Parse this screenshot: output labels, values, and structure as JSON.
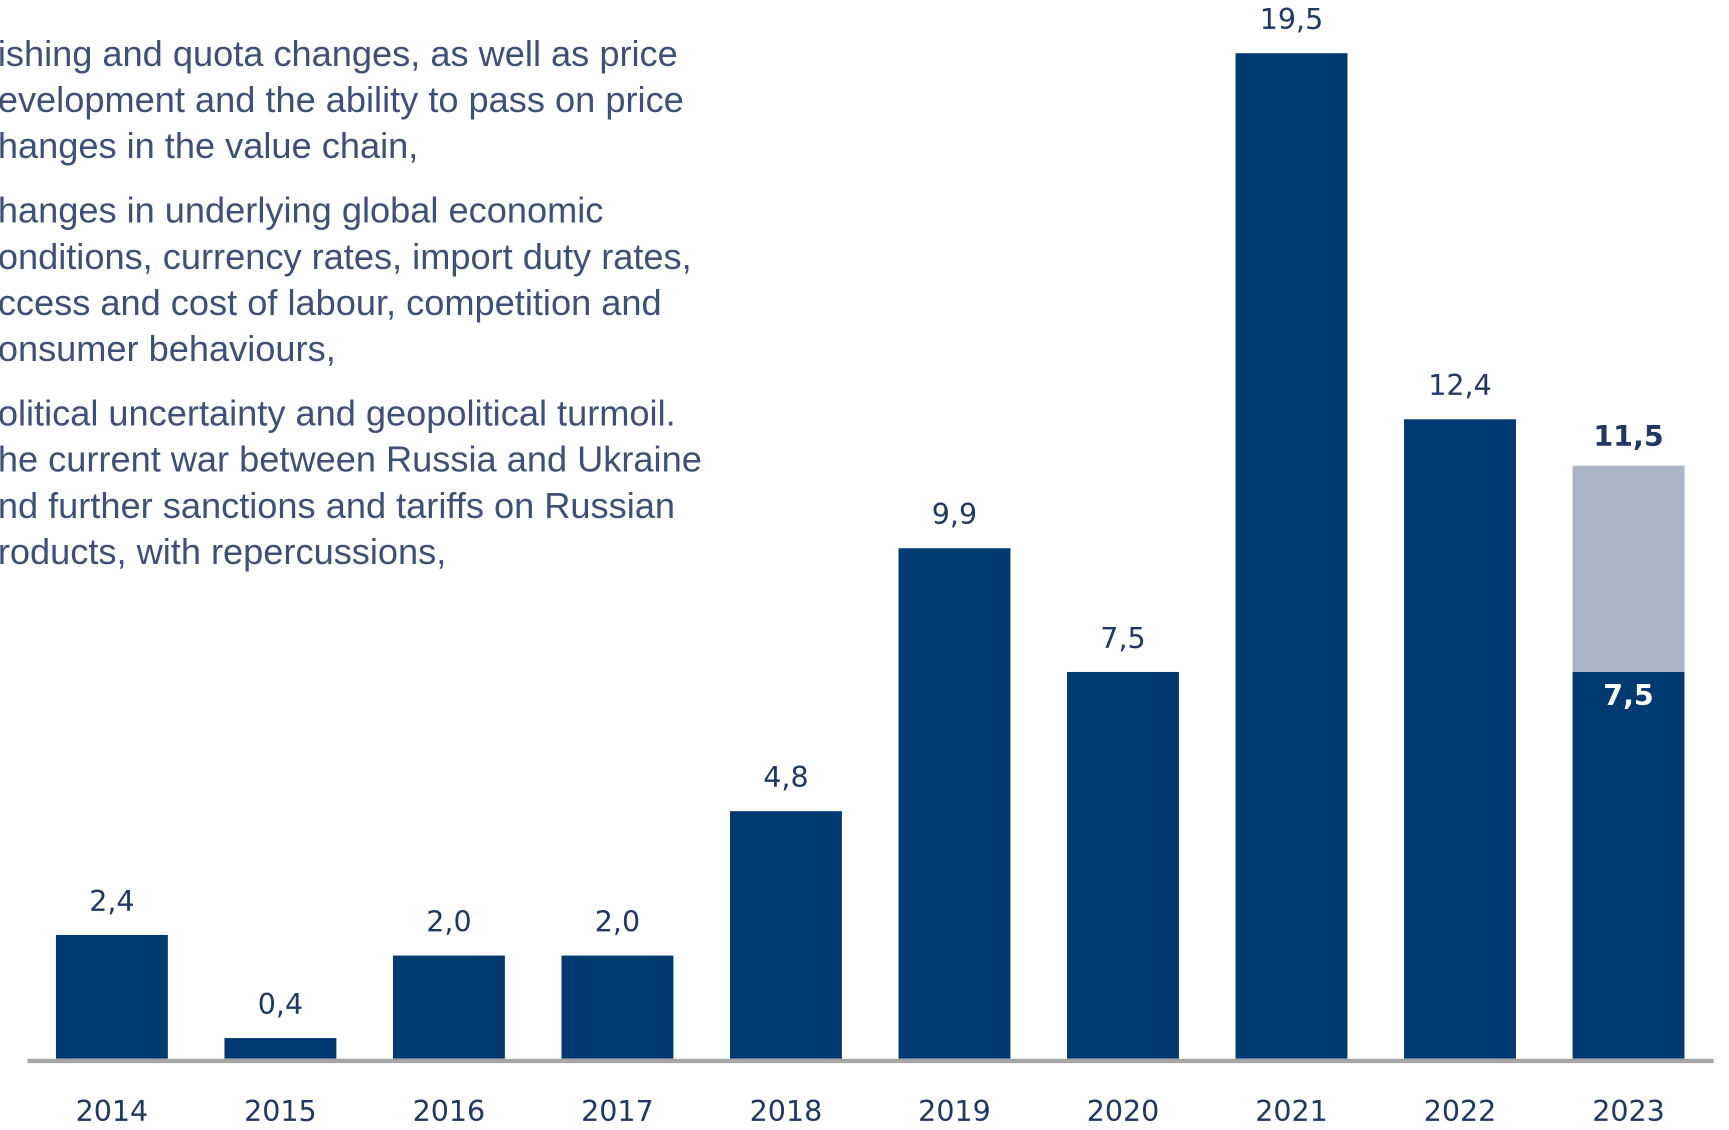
{
  "text_lines": [
    "ishing and quota changes, as well as price",
    "evelopment and the ability to pass on price",
    "hanges in the value chain,",
    "hanges in underlying global economic",
    "onditions, currency rates, import duty rates,",
    "ccess and cost of labour, competition and",
    "onsumer behaviours,",
    "olitical uncertainty and geopolitical turmoil.",
    "he current war between Russia and Ukraine",
    "nd further sanctions and tariffs on Russian",
    "roducts, with repercussions,"
  ],
  "chart_data": {
    "type": "stacked_bar",
    "categories": [
      "2014",
      "2015",
      "2016",
      "2017",
      "2018",
      "2019",
      "2020",
      "2021",
      "2022",
      "2023"
    ],
    "series": [
      {
        "color": "#003a70",
        "values": [
          2.4,
          0.4,
          2.0,
          2.0,
          4.8,
          9.9,
          7.5,
          19.5,
          12.4,
          7.5
        ],
        "value_labels": [
          "2,4",
          "0,4",
          "2,0",
          "2,0",
          "4,8",
          "9,9",
          "7,5",
          "19,5",
          "12,4",
          "7,5"
        ]
      },
      {
        "color": "#aab4c6",
        "values": [
          null,
          null,
          null,
          null,
          null,
          null,
          null,
          null,
          null,
          4.0
        ]
      }
    ],
    "totals": [
      null,
      null,
      null,
      null,
      null,
      null,
      null,
      null,
      null,
      11.5
    ],
    "total_labels": [
      null,
      null,
      null,
      null,
      null,
      null,
      null,
      null,
      null,
      "11,5"
    ],
    "ylim": [
      0,
      20
    ]
  }
}
